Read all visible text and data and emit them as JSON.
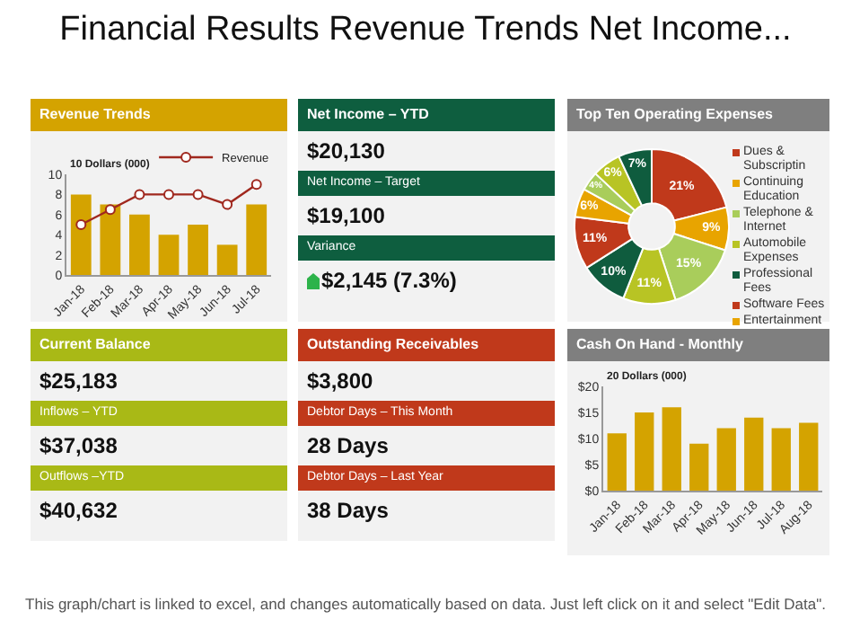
{
  "chart_data": [
    {
      "type": "other",
      "title": "Financial Results Revenue Trends Net Income...",
      "annotations": [
        "This graph/chart is linked to excel, and changes automatically based on data. Just left click on it and select \"Edit Data\"."
      ]
    },
    {
      "type": "bar",
      "title": "Revenue Trends",
      "subtitle": "10 Dollars (000)",
      "categories": [
        "Jan-18",
        "Feb-18",
        "Mar-18",
        "Apr-18",
        "May-18",
        "Jun-18",
        "Jul-18"
      ],
      "series": [
        {
          "type": "bar",
          "color": "#d4a300",
          "values": [
            8,
            7,
            6,
            4,
            5,
            3,
            7
          ]
        },
        {
          "type": "line",
          "name": "Revenue",
          "color": "#a0281e",
          "values": [
            5,
            6.5,
            8,
            8,
            8,
            7,
            9
          ]
        }
      ],
      "ylim": [
        0,
        10
      ],
      "yticks": [
        0,
        2,
        4,
        6,
        8,
        10
      ],
      "legend": "top right",
      "marker": "circle"
    },
    {
      "type": "other",
      "title": "Net Income – YTD",
      "annotations": [
        "$20,130",
        "Net Income – Target",
        "$19,100",
        "Variance",
        "$2,145 (7.3%)"
      ]
    },
    {
      "type": "donut",
      "title": "Top Ten Operating Expenses",
      "categories": [
        "Dues & Subscriptin",
        "Continuing Education",
        "Telephone & Internet",
        "Automobile Expenses",
        "Professional Fees",
        "Software Fees",
        "Entertainment",
        null,
        null,
        null
      ],
      "values": [
        21,
        9,
        15,
        11,
        10,
        11,
        6,
        4,
        6,
        7
      ],
      "value_labels": [
        "21%",
        "9%",
        "15%",
        "11%",
        "10%",
        "11%",
        "6%",
        "4%",
        "6%",
        "7%"
      ],
      "colors": [
        "#c0391b",
        "#e8a400",
        "#a9cd5b",
        "#b8c424",
        "#0f5c3e",
        "#c0391b",
        "#e8a400",
        "#a9cd5b",
        "#b8c424",
        "#0f5c3e"
      ],
      "legend": "right"
    },
    {
      "type": "other",
      "title": "Current Balance",
      "annotations": [
        "$25,183",
        "Inflows – YTD",
        "$37,038",
        "Outflows –YTD",
        "$40,632"
      ]
    },
    {
      "type": "other",
      "title": "Outstanding Receivables",
      "annotations": [
        "$3,800",
        "Debtor Days – This Month",
        "28 Days",
        "Debtor Days – Last Year",
        "38 Days"
      ]
    },
    {
      "type": "bar",
      "title": "Cash On Hand - Monthly",
      "subtitle": "20 Dollars (000)",
      "categories": [
        "Jan-18",
        "Feb-18",
        "Mar-18",
        "Apr-18",
        "May-18",
        "Jun-18",
        "Jul-18",
        "Aug-18"
      ],
      "values": [
        11,
        15,
        16,
        9,
        12,
        14,
        12,
        13
      ],
      "color": "#d4a300",
      "ylim": [
        0,
        20
      ],
      "yticks": [
        {
          "value": 0,
          "label": "$0"
        },
        {
          "value": 5,
          "label": "$5"
        },
        {
          "value": 10,
          "label": "$10"
        },
        {
          "value": 15,
          "label": "$15"
        },
        {
          "value": 20,
          "label": "$20"
        }
      ]
    }
  ]
}
